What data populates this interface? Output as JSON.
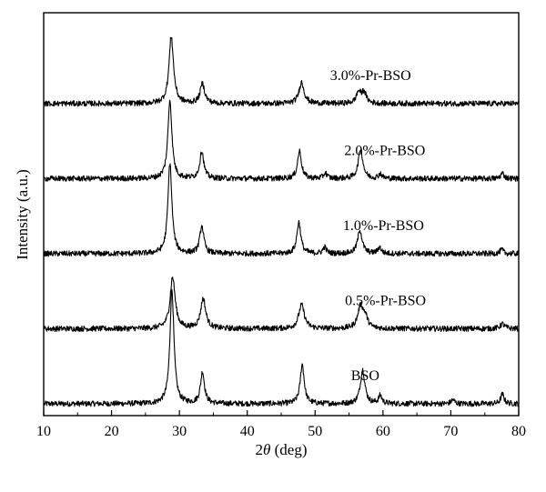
{
  "chart_data": {
    "type": "line",
    "title": "",
    "xlabel_prefix": "2",
    "xlabel_symbol": "θ",
    "xlabel_suffix": " (deg)",
    "ylabel": "Intensity (a.u.)",
    "xlim": [
      10,
      80
    ],
    "ylim": [
      0,
      5.1
    ],
    "x_ticks": [
      "10",
      "20",
      "30",
      "40",
      "50",
      "60",
      "70",
      "80"
    ],
    "y_ticks_labeled": false,
    "grid": false,
    "legend": "none",
    "series": [
      {
        "name": "BSO",
        "baseline": 0.15,
        "peaks": [
          [
            28.9,
            1.45,
            0.35
          ],
          [
            33.4,
            0.4,
            0.35
          ],
          [
            48.1,
            0.5,
            0.35
          ],
          [
            57.0,
            0.43,
            0.4
          ],
          [
            59.6,
            0.1,
            0.3
          ],
          [
            70.3,
            0.05,
            0.3
          ],
          [
            77.6,
            0.12,
            0.3
          ]
        ]
      },
      {
        "name": "0.5%-Pr-BSO",
        "baseline": 1.1,
        "peaks": [
          [
            29.0,
            0.65,
            0.45
          ],
          [
            33.5,
            0.38,
            0.45
          ],
          [
            48.0,
            0.3,
            0.5
          ],
          [
            56.7,
            0.28,
            0.5
          ],
          [
            57.4,
            0.12,
            0.4
          ],
          [
            77.6,
            0.06,
            0.4
          ]
        ]
      },
      {
        "name": "1.0%-Pr-BSO",
        "baseline": 2.05,
        "peaks": [
          [
            28.6,
            1.15,
            0.35
          ],
          [
            33.3,
            0.35,
            0.35
          ],
          [
            47.6,
            0.4,
            0.35
          ],
          [
            51.4,
            0.08,
            0.3
          ],
          [
            56.6,
            0.3,
            0.4
          ],
          [
            59.5,
            0.08,
            0.3
          ],
          [
            77.5,
            0.05,
            0.3
          ]
        ]
      },
      {
        "name": "2.0%-Pr-BSO",
        "baseline": 3.0,
        "peaks": [
          [
            28.6,
            1.0,
            0.35
          ],
          [
            33.3,
            0.35,
            0.35
          ],
          [
            47.7,
            0.35,
            0.35
          ],
          [
            51.5,
            0.07,
            0.3
          ],
          [
            56.7,
            0.38,
            0.4
          ],
          [
            59.6,
            0.06,
            0.3
          ],
          [
            77.6,
            0.07,
            0.3
          ]
        ]
      },
      {
        "name": "3.0%-Pr-BSO",
        "baseline": 3.95,
        "peaks": [
          [
            28.8,
            0.85,
            0.4
          ],
          [
            33.4,
            0.25,
            0.4
          ],
          [
            48.0,
            0.27,
            0.45
          ],
          [
            56.4,
            0.14,
            0.4
          ],
          [
            57.2,
            0.14,
            0.4
          ]
        ]
      }
    ],
    "series_label_x": [
      55.3,
      54.4,
      54.1,
      54.3,
      52.2
    ]
  }
}
